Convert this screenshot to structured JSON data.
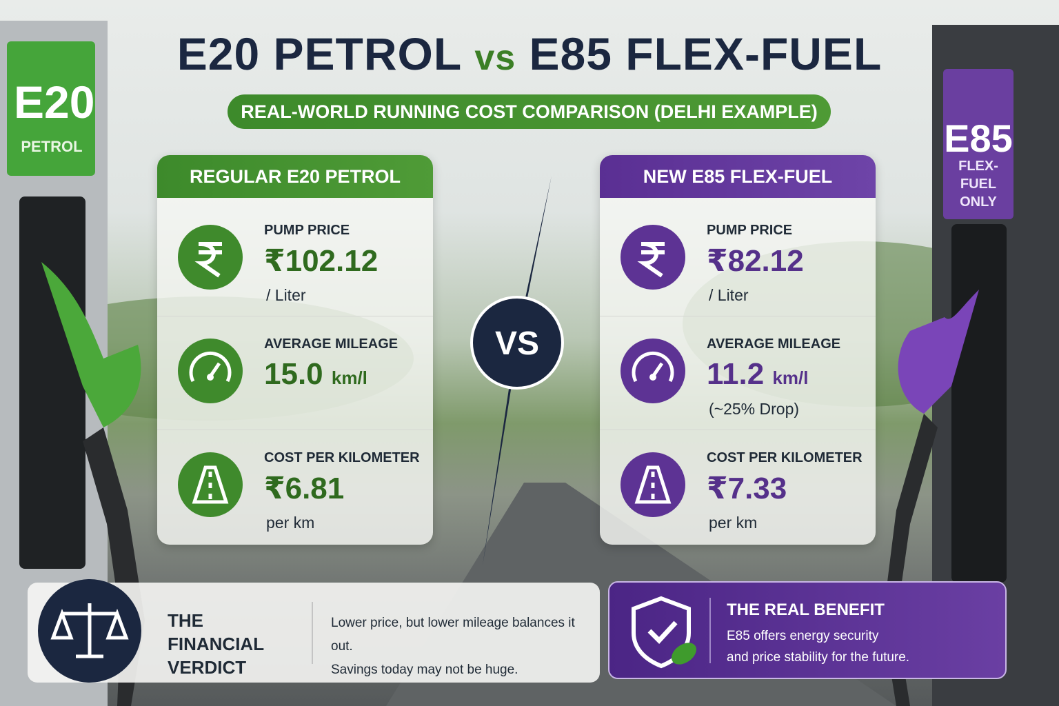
{
  "header": {
    "title": {
      "left": "E20 PETROL",
      "vs": "vs",
      "right": "E85 FLEX-FUEL"
    },
    "subtitle": "REAL-WORLD RUNNING COST COMPARISON (DELHI EXAMPLE)"
  },
  "pumps": [
    {
      "code": "E20",
      "label": "PETROL"
    },
    {
      "code": "E85",
      "label": "FLEX-FUEL ONLY"
    }
  ],
  "cards": [
    {
      "title": "REGULAR E20 PETROL",
      "rows": [
        {
          "label": "PUMP PRICE",
          "value": "₹102.12",
          "unit": "/ Liter"
        },
        {
          "label": "AVERAGE MILEAGE",
          "value": "15.0",
          "unit": "km/l"
        },
        {
          "label": "COST PER KILOMETER",
          "value": "₹6.81",
          "unit": "per km"
        }
      ]
    },
    {
      "title": "NEW E85 FLEX-FUEL",
      "rows": [
        {
          "label": "PUMP PRICE",
          "value": "₹82.12",
          "unit": "/ Liter"
        },
        {
          "label": "AVERAGE MILEAGE",
          "value": "11.2",
          "unit": "km/l",
          "note": "(~25% Drop)"
        },
        {
          "label": "COST PER KILOMETER",
          "value": "₹7.33",
          "unit": "per km"
        }
      ]
    }
  ],
  "vs": "VS",
  "verdict": {
    "title": "THE FINANCIAL VERDICT",
    "lines": [
      "Lower price, but lower mileage balances it out.",
      "Savings today may not be huge."
    ]
  },
  "benefit": {
    "title": "THE REAL BENEFIT",
    "lines": [
      "E85 offers energy security",
      "and price stability for the future."
    ]
  }
}
